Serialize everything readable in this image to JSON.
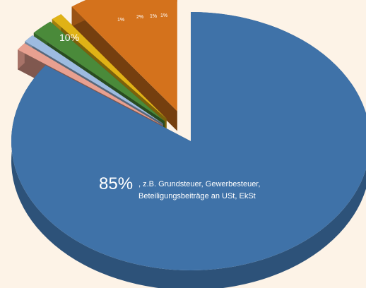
{
  "chart_data": {
    "type": "pie",
    "title": "",
    "exploded": true,
    "three_d": true,
    "slices": [
      {
        "label": "85%",
        "value": 85,
        "annotation_line1": ", z.B. Grundsteuer, Gewerbesteuer,",
        "annotation_line2": "Beteiligungsbeiträge an USt, EkSt",
        "color": "#3f72a8"
      },
      {
        "label": "10%",
        "value": 10,
        "color": "#d4721c"
      },
      {
        "label": "1%",
        "value": 1,
        "color": "#e0b216"
      },
      {
        "label": "2%",
        "value": 2,
        "color": "#4a8a3a"
      },
      {
        "label": "1%",
        "value": 1,
        "color": "#9dbbe0"
      },
      {
        "label": "1%",
        "value": 1,
        "color": "#e8a090"
      }
    ]
  }
}
